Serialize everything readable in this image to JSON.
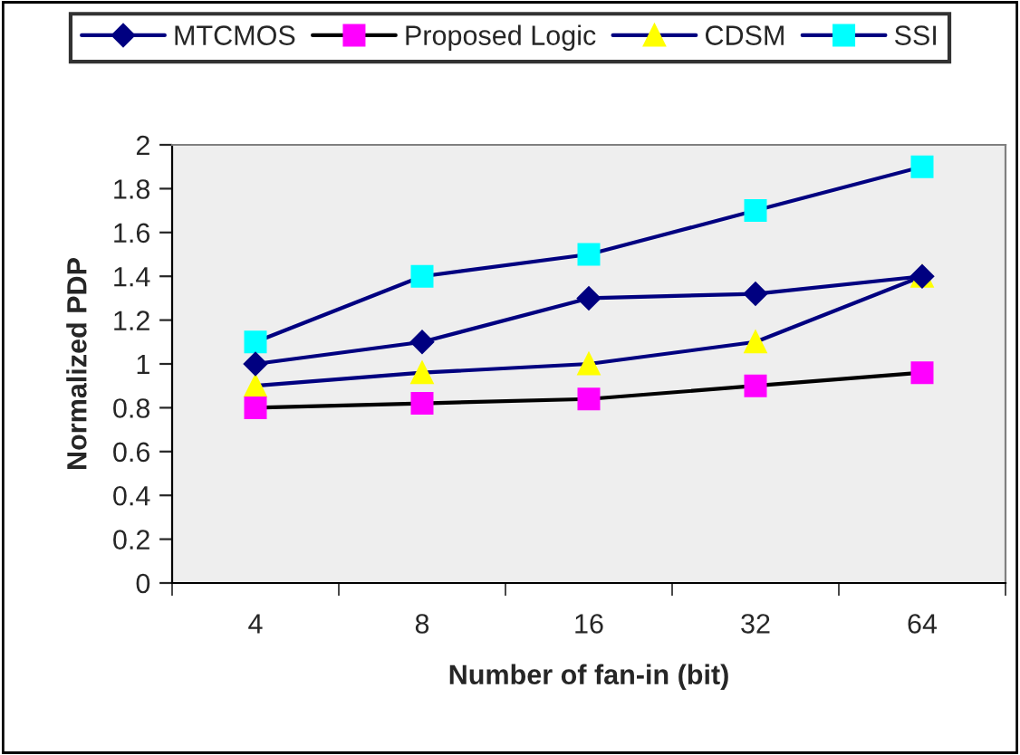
{
  "chart_data": {
    "type": "line",
    "xlabel": "Number of fan-in (bit)",
    "ylabel": "Normalized PDP",
    "categories": [
      "4",
      "8",
      "16",
      "32",
      "64"
    ],
    "series": [
      {
        "name": "MTCMOS",
        "color": "#000080",
        "colors": [
          "#000080",
          "#000080",
          "#000080",
          "#000080",
          "#000080"
        ],
        "marker": "diamond",
        "values": [
          1.0,
          1.1,
          1.3,
          1.32,
          1.4
        ]
      },
      {
        "name": "Proposed Logic",
        "color": "#000000",
        "colors": [
          "#ff00ff",
          "#ff00ff",
          "#ff00ff",
          "#ff00ff",
          "#ff00ff"
        ],
        "marker": "square",
        "values": [
          0.8,
          0.82,
          0.84,
          0.9,
          0.96
        ]
      },
      {
        "name": "CDSM",
        "color": "#000080",
        "colors": [
          "#ffff00",
          "#ffff00",
          "#ffff00",
          "#ffff00",
          "#ffff00"
        ],
        "marker": "triangle",
        "values": [
          0.9,
          0.96,
          1.0,
          1.1,
          1.4
        ]
      },
      {
        "name": "SSI",
        "color": "#000080",
        "colors": [
          "#00ffff",
          "#00ffff",
          "#00ffff",
          "#00ffff",
          "#00ffff"
        ],
        "marker": "square",
        "values": [
          1.1,
          1.4,
          1.5,
          1.7,
          1.9
        ]
      }
    ],
    "ylim": [
      0,
      2
    ],
    "yticks": [
      0,
      0.2,
      0.4,
      0.6,
      0.8,
      1,
      1.2,
      1.4,
      1.6,
      1.8,
      2
    ],
    "grid": false,
    "legend": "top"
  }
}
